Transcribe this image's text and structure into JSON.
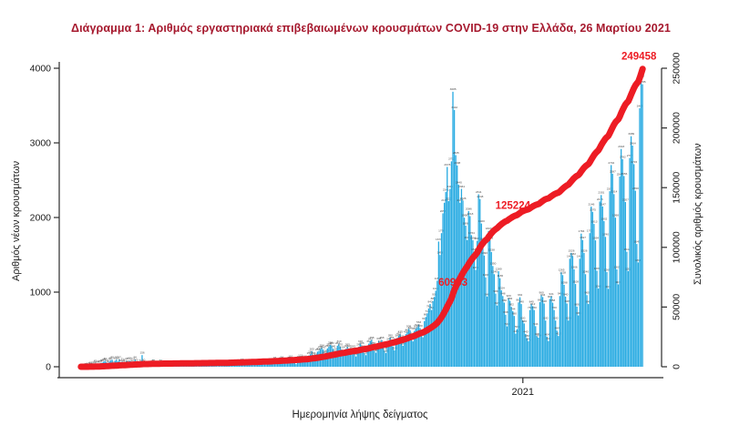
{
  "chart_data": {
    "type": "bar",
    "title": "Διάγραμμα 1: Αριθμός εργαστηριακά επιβεβαιωμένων κρουσμάτων COVID-19 στην Ελλάδα, 26 Μαρτίου 2021",
    "x_axis": {
      "label": "Ημερομηνία λήψης δείγματος",
      "year_tick": {
        "label": "2021",
        "day_index": 310
      }
    },
    "left_axis": {
      "label": "Αριθμός νέων κρουσμάτων",
      "max": 4000,
      "ticks": [
        0,
        1000,
        2000,
        3000,
        4000
      ]
    },
    "right_axis": {
      "label": "Συνολικός αριθμός κρουσμάτων",
      "max": 250000,
      "ticks": [
        0,
        50000,
        100000,
        150000,
        200000,
        250000
      ]
    },
    "series": [
      {
        "name": "daily-new-cases",
        "type": "bar",
        "color": "#29abe2",
        "values": [
          1,
          2,
          4,
          7,
          7,
          10,
          15,
          21,
          10,
          30,
          45,
          27,
          41,
          35,
          48,
          56,
          68,
          80,
          60,
          40,
          70,
          85,
          95,
          31,
          82,
          95,
          71,
          97,
          56,
          71,
          46,
          57,
          78,
          40,
          82,
          77,
          52,
          71,
          96,
          60,
          32,
          25,
          52,
          156,
          60,
          33,
          25,
          15,
          25,
          31,
          48,
          55,
          15,
          12,
          10,
          25,
          56,
          16,
          31,
          10,
          16,
          11,
          17,
          12,
          6,
          12,
          15,
          10,
          6,
          15,
          22,
          17,
          10,
          12,
          9,
          15,
          24,
          35,
          15,
          12,
          19,
          10,
          5,
          10,
          21,
          41,
          16,
          11,
          7,
          12,
          20,
          32,
          14,
          18,
          9,
          12,
          8,
          15,
          20,
          11,
          13,
          17,
          12,
          25,
          45,
          52,
          29,
          36,
          56,
          31,
          24,
          46,
          28,
          67,
          40,
          35,
          23,
          41,
          56,
          42,
          30,
          25,
          34,
          45,
          58,
          62,
          50,
          38,
          65,
          42,
          28,
          33,
          57,
          75,
          47,
          60,
          93,
          40,
          37,
          56,
          83,
          94,
          67,
          55,
          40,
          71,
          92,
          110,
          86,
          75,
          60,
          35,
          78,
          102,
          121,
          96,
          78,
          110,
          93,
          75,
          151,
          168,
          205,
          153,
          131,
          126,
          203,
          212,
          235,
          254,
          230,
          164,
          180,
          246,
          269,
          293,
          283,
          240,
          177,
          207,
          283,
          310,
          270,
          233,
          179,
          158,
          242,
          265,
          245,
          190,
          210,
          243,
          170,
          138,
          175,
          268,
          310,
          286,
          240,
          182,
          155,
          215,
          310,
          342,
          358,
          286,
          215,
          188,
          263,
          346,
          312,
          358,
          286,
          218,
          183,
          298,
          342,
          390,
          356,
          272,
          220,
          337,
          388,
          415,
          435,
          376,
          280,
          322,
          436,
          465,
          508,
          486,
          412,
          340,
          482,
          508,
          529,
          563,
          520,
          430,
          395,
          612,
          667,
          715,
          782,
          842,
          760,
          880,
          935,
          1020,
          1152,
          1678,
          1498,
          1790,
          2056,
          2198,
          2341,
          2678,
          2220,
          2383,
          2752,
          3685,
          3442,
          2835,
          2698,
          2440,
          2198,
          2384,
          2226,
          1998,
          1890,
          1698,
          2086,
          2018,
          1764,
          1696,
          1544,
          1298,
          1686,
          2311,
          2248,
          1920,
          1680,
          1490,
          1198,
          940,
          1820,
          1696,
          1538,
          1350,
          1240,
          980,
          820,
          1280,
          1186,
          1024,
          948,
          860,
          698,
          540,
          920,
          884,
          802,
          744,
          680,
          444,
          504,
          862,
          932,
          840,
          620,
          580,
          440,
          380,
          341,
          760,
          840,
          812,
          760,
          544,
          406,
          390,
          866,
          960,
          934,
          848,
          620,
          404,
          344,
          908,
          941,
          858,
          760,
          620,
          484,
          412,
          948,
          1265,
          1228,
          1098,
          940,
          848,
          620,
          1448,
          1526,
          1482,
          1306,
          1108,
          806,
          688,
          1448,
          1784,
          1697,
          1526,
          1240,
          960,
          840,
          1790,
          2146,
          2075,
          1913,
          1694,
          1286,
          1048,
          2215,
          2301,
          2147,
          1952,
          1740,
          1269,
          1044,
          2353,
          2702,
          2587,
          2314,
          1998,
          1305,
          1104,
          2549,
          2918,
          2782,
          2556,
          2207,
          1542,
          1282,
          2797,
          3089,
          2964,
          2715,
          2358,
          1645,
          1398,
          3465,
          3865,
          3785
        ]
      },
      {
        "name": "cumulative-cases",
        "type": "line",
        "color": "#ed1c24",
        "final_total": 249458
      }
    ],
    "annotations": [
      {
        "label": "60953",
        "value": 60953,
        "placement": "on-line"
      },
      {
        "label": "125224",
        "value": 125224,
        "placement": "on-line"
      },
      {
        "label": "249458",
        "value": 249458,
        "placement": "end"
      }
    ],
    "colors": {
      "title": "#a6192e",
      "bars": "#29abe2",
      "line": "#ed1c24",
      "axis": "#2b2b2b",
      "tick_text": "#1a1a1a",
      "bar_labels": "#4a4a4a"
    }
  }
}
